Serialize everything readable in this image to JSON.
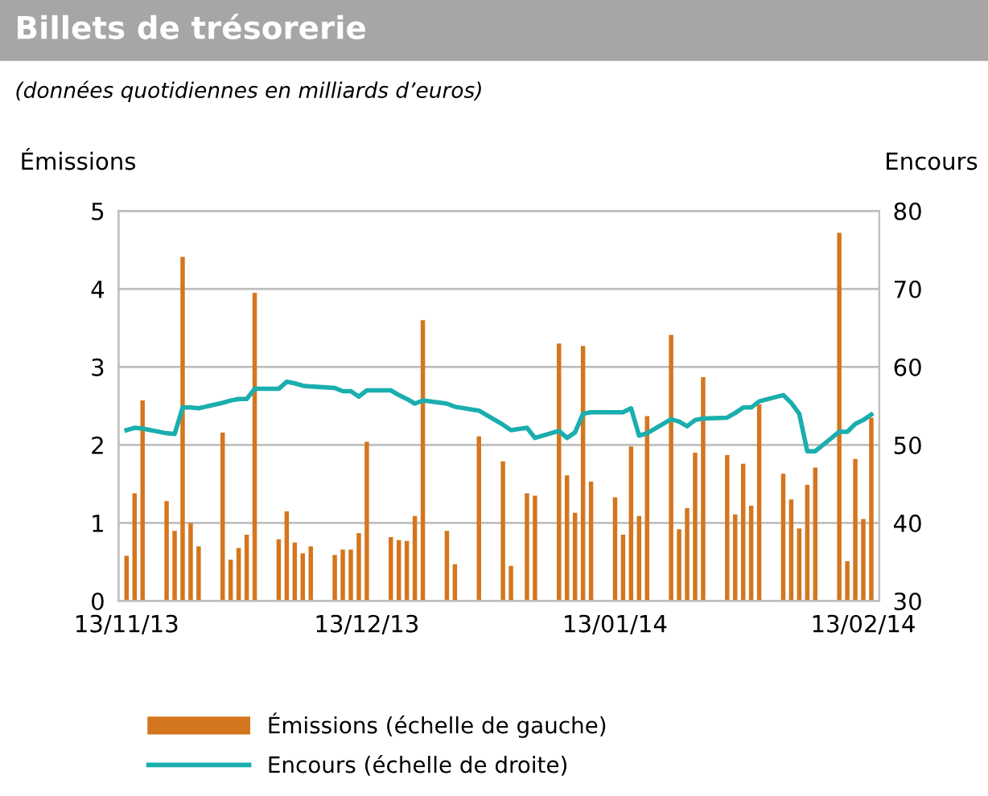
{
  "chart_data": {
    "type": "bar",
    "title": "Billets de trésorerie",
    "subtitle": "(données quotidiennes en milliards d’euros)",
    "ylabel": "Émissions",
    "y2label": "Encours",
    "x": [
      "2013-11-13",
      "2013-11-14",
      "2013-11-15",
      "2013-11-18",
      "2013-11-19",
      "2013-11-20",
      "2013-11-21",
      "2013-11-22",
      "2013-11-25",
      "2013-11-26",
      "2013-11-27",
      "2013-11-28",
      "2013-11-29",
      "2013-12-02",
      "2013-12-03",
      "2013-12-04",
      "2013-12-05",
      "2013-12-06",
      "2013-12-09",
      "2013-12-10",
      "2013-12-11",
      "2013-12-12",
      "2013-12-13",
      "2013-12-16",
      "2013-12-17",
      "2013-12-18",
      "2013-12-19",
      "2013-12-20",
      "2013-12-23",
      "2013-12-24",
      "2013-12-27",
      "2013-12-30",
      "2013-12-31",
      "2014-01-02",
      "2014-01-03",
      "2014-01-06",
      "2014-01-07",
      "2014-01-08",
      "2014-01-09",
      "2014-01-10",
      "2014-01-13",
      "2014-01-14",
      "2014-01-15",
      "2014-01-16",
      "2014-01-17",
      "2014-01-20",
      "2014-01-21",
      "2014-01-22",
      "2014-01-23",
      "2014-01-24",
      "2014-01-27",
      "2014-01-28",
      "2014-01-29",
      "2014-01-30",
      "2014-01-31",
      "2014-02-03",
      "2014-02-04",
      "2014-02-05",
      "2014-02-06",
      "2014-02-07",
      "2014-02-10",
      "2014-02-11",
      "2014-02-12",
      "2014-02-13",
      "2014-02-14"
    ],
    "series": [
      {
        "name": "Émissions (échelle de gauche)",
        "color": "#d4761e",
        "values": [
          0.58,
          1.38,
          2.57,
          1.28,
          0.9,
          4.41,
          1.0,
          0.7,
          2.16,
          0.53,
          0.68,
          0.85,
          3.95,
          0.79,
          1.15,
          0.75,
          0.61,
          0.7,
          0.59,
          0.66,
          0.66,
          0.87,
          2.04,
          0.82,
          0.78,
          0.77,
          1.09,
          3.6,
          0.9,
          0.47,
          2.11,
          1.79,
          0.45,
          1.38,
          1.35,
          3.3,
          1.61,
          1.13,
          3.27,
          1.53,
          1.33,
          0.85,
          1.98,
          1.09,
          2.37,
          3.41,
          0.92,
          1.19,
          1.9,
          2.87,
          1.87,
          1.11,
          1.76,
          1.22,
          2.52,
          1.63,
          1.3,
          0.93,
          1.49,
          1.71,
          4.72,
          0.51,
          1.82,
          1.05,
          2.35
        ]
      },
      {
        "name": "Encours (échelle de droite)",
        "type": "line",
        "axis": "y2",
        "color": "#1aaeae",
        "values": [
          51.9,
          52.2,
          52.1,
          51.5,
          51.4,
          54.8,
          54.8,
          54.7,
          55.4,
          55.7,
          55.9,
          55.9,
          57.2,
          57.2,
          58.1,
          57.9,
          57.6,
          57.5,
          57.3,
          56.9,
          56.9,
          56.2,
          57.0,
          57.0,
          56.4,
          55.9,
          55.3,
          55.7,
          55.3,
          54.9,
          54.4,
          52.6,
          51.9,
          52.2,
          50.9,
          51.8,
          50.9,
          51.6,
          54.0,
          54.2,
          54.2,
          54.2,
          54.7,
          51.2,
          51.5,
          53.3,
          53.0,
          52.4,
          53.2,
          53.4,
          53.5,
          54.1,
          54.8,
          54.8,
          55.6,
          56.4,
          55.4,
          54.0,
          49.2,
          49.2,
          51.7,
          51.7,
          52.7,
          53.2,
          53.9
        ]
      }
    ],
    "xlim": [
      "2013-11-12",
      "2014-02-15"
    ],
    "xticks": [
      {
        "value": "2013-11-13",
        "label": "13/11/13"
      },
      {
        "value": "2013-12-13",
        "label": "13/12/13"
      },
      {
        "value": "2014-01-13",
        "label": "13/01/14"
      },
      {
        "value": "2014-02-13",
        "label": "13/02/14"
      }
    ],
    "ylim": [
      0,
      5
    ],
    "yticks": [
      0,
      1,
      2,
      3,
      4,
      5
    ],
    "y2lim": [
      30,
      80
    ],
    "y2ticks": [
      30,
      40,
      50,
      60,
      70,
      80
    ],
    "grid": "y",
    "legend": "bottom"
  }
}
